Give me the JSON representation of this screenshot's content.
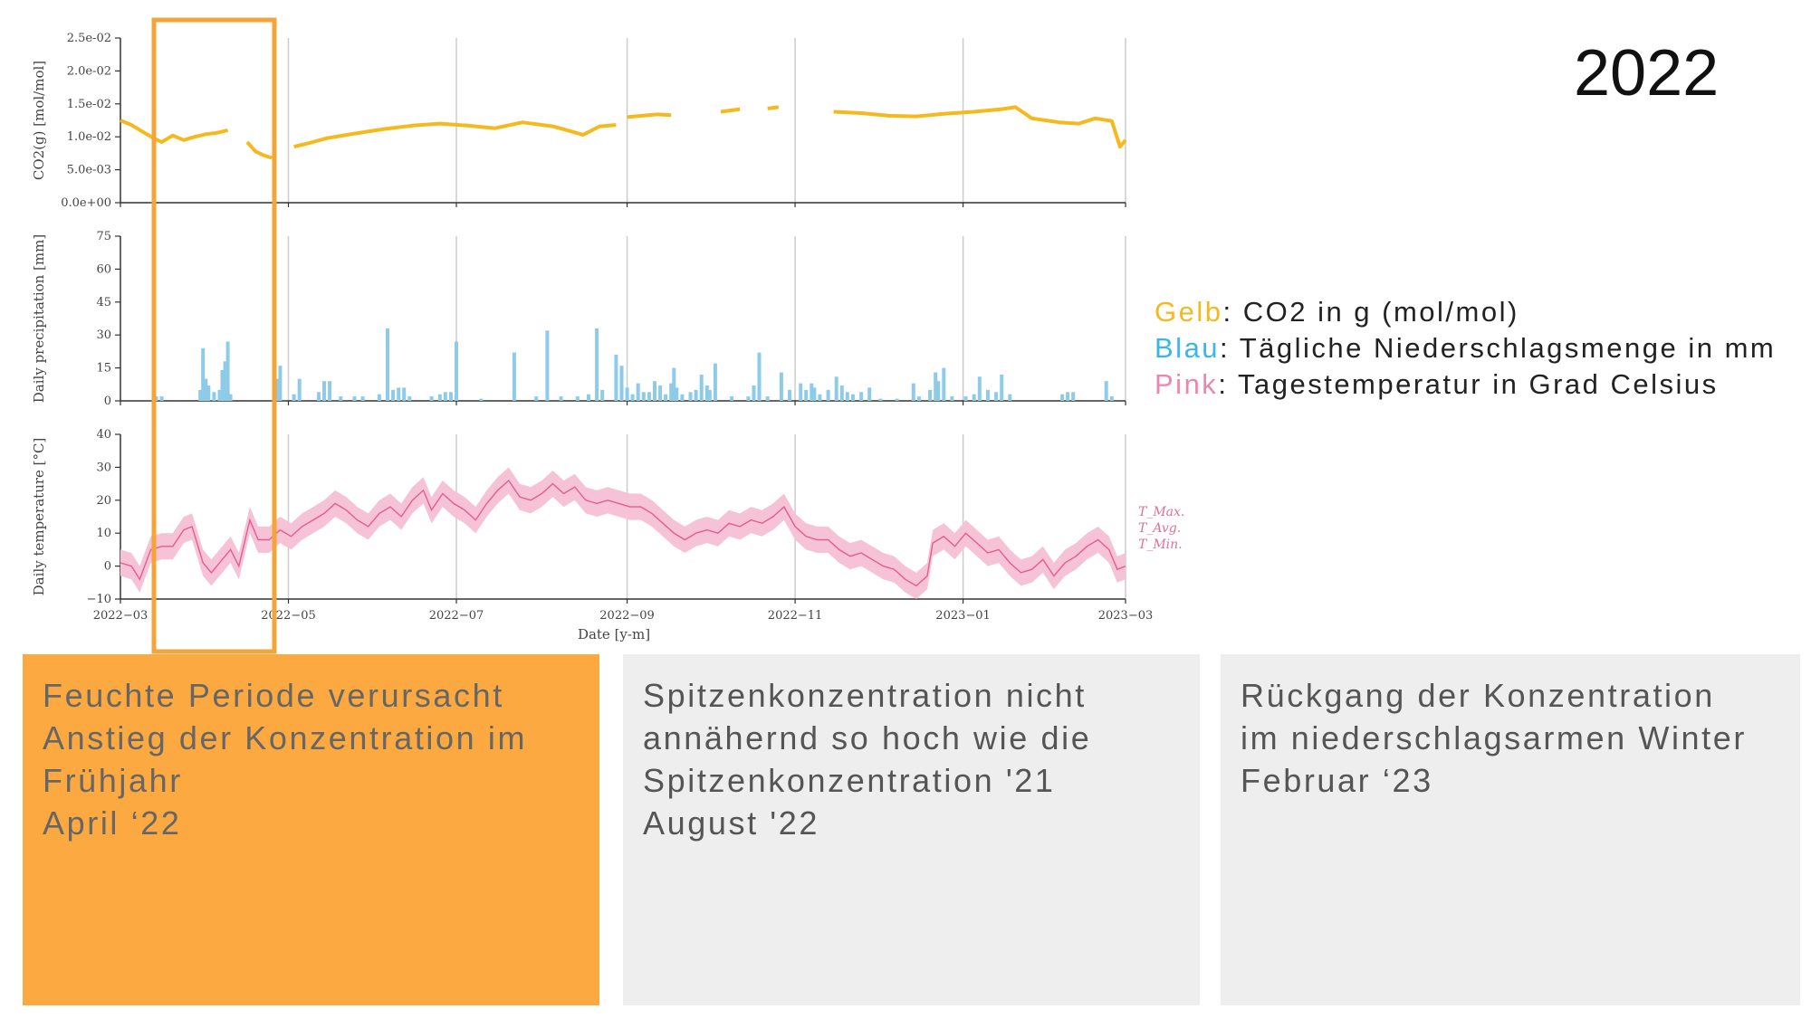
{
  "header": {
    "year": "2022"
  },
  "legend": {
    "rows": [
      {
        "key": "Gelb",
        "text": ": CO2 in g (mol/mol)",
        "color": "#f5b91e"
      },
      {
        "key": "Blau",
        "text": ": Tägliche Niederschlagsmenge in mm",
        "color": "#3ab7e8"
      },
      {
        "key": "Pink",
        "text": ": Tagestemperatur in Grad Celsius",
        "color": "#e888ae"
      }
    ]
  },
  "panels": [
    {
      "lines": [
        "Feuchte Periode verursacht",
        "Anstieg der Konzentration im",
        "Frühjahr",
        "April ‘22"
      ]
    },
    {
      "lines": [
        "Spitzenkonzentration nicht",
        "annähernd so hoch wie die",
        "Spitzenkonzentration '21",
        "August '22"
      ]
    },
    {
      "lines": [
        "Rückgang der Konzentration",
        "im niederschlagsarmen Winter",
        "Februar ‘23"
      ]
    }
  ],
  "chart_data": [
    {
      "type": "line",
      "ylabel": "CO2(g) [mol/mol]",
      "ylim": [
        0,
        0.025
      ],
      "yticks": [
        "0.0e+00",
        "5.0e-03",
        "1.0e-02",
        "1.5e-02",
        "2.0e-02",
        "2.5e-02"
      ],
      "color": "#f5b91e",
      "series": [
        {
          "points": [
            [
              "2022-03-01",
              0.0125
            ],
            [
              "2022-03-05",
              0.0118
            ],
            [
              "2022-03-09",
              0.0108
            ],
            [
              "2022-03-13",
              0.0098
            ],
            [
              "2022-03-16",
              0.0092
            ],
            [
              "2022-03-20",
              0.0102
            ],
            [
              "2022-03-24",
              0.0095
            ],
            [
              "2022-03-28",
              0.01
            ],
            [
              "2022-04-01",
              0.0104
            ],
            [
              "2022-04-05",
              0.0106
            ],
            [
              "2022-04-09",
              0.011
            ],
            null,
            [
              "2022-04-16",
              0.0092
            ],
            [
              "2022-04-19",
              0.0078
            ],
            [
              "2022-04-22",
              0.0072
            ],
            [
              "2022-04-25",
              0.0068
            ],
            null,
            [
              "2022-05-03",
              0.0085
            ],
            [
              "2022-05-08",
              0.009
            ],
            [
              "2022-05-15",
              0.0098
            ],
            [
              "2022-05-25",
              0.0105
            ],
            [
              "2022-06-05",
              0.0112
            ],
            [
              "2022-06-15",
              0.0117
            ],
            [
              "2022-06-25",
              0.012
            ],
            [
              "2022-07-05",
              0.0117
            ],
            [
              "2022-07-15",
              0.0113
            ],
            [
              "2022-07-25",
              0.0122
            ],
            [
              "2022-08-05",
              0.0116
            ],
            [
              "2022-08-12",
              0.0108
            ],
            [
              "2022-08-16",
              0.0103
            ],
            [
              "2022-08-22",
              0.0116
            ],
            [
              "2022-08-28",
              0.0118
            ],
            null,
            [
              "2022-09-01",
              0.013
            ],
            [
              "2022-09-12",
              0.0134
            ],
            [
              "2022-09-17",
              0.0133
            ],
            null,
            [
              "2022-10-05",
              0.0138
            ],
            [
              "2022-10-12",
              0.0142
            ],
            null,
            [
              "2022-10-22",
              0.0143
            ],
            [
              "2022-10-26",
              0.0145
            ],
            null,
            [
              "2022-11-15",
              0.0138
            ],
            [
              "2022-11-25",
              0.0136
            ],
            [
              "2022-12-05",
              0.0132
            ],
            [
              "2022-12-15",
              0.0131
            ],
            [
              "2022-12-25",
              0.0135
            ],
            [
              "2023-01-05",
              0.0138
            ],
            [
              "2023-01-15",
              0.0142
            ],
            [
              "2023-01-20",
              0.0145
            ],
            [
              "2023-01-26",
              0.0128
            ],
            [
              "2023-02-05",
              0.0122
            ],
            [
              "2023-02-12",
              0.012
            ],
            [
              "2023-02-18",
              0.0128
            ],
            [
              "2023-02-24",
              0.0124
            ],
            [
              "2023-02-27",
              0.0085
            ],
            [
              "2023-03-01",
              0.0095
            ]
          ]
        }
      ]
    },
    {
      "type": "bar",
      "ylabel": "Daily precipitation [mm]",
      "ylim": [
        0,
        75
      ],
      "yticks": [
        "0",
        "15",
        "30",
        "45",
        "60",
        "75"
      ],
      "color": "#8dcbe8",
      "bars": [
        [
          "2022-03-14",
          2
        ],
        [
          "2022-03-16",
          2
        ],
        [
          "2022-03-30",
          5
        ],
        [
          "2022-03-31",
          24
        ],
        [
          "2022-04-01",
          10
        ],
        [
          "2022-04-02",
          7
        ],
        [
          "2022-04-04",
          4
        ],
        [
          "2022-04-06",
          5
        ],
        [
          "2022-04-07",
          14
        ],
        [
          "2022-04-08",
          18
        ],
        [
          "2022-04-09",
          27
        ],
        [
          "2022-04-10",
          3
        ],
        [
          "2022-04-27",
          10
        ],
        [
          "2022-04-28",
          16
        ],
        [
          "2022-05-03",
          3
        ],
        [
          "2022-05-05",
          10
        ],
        [
          "2022-05-12",
          4
        ],
        [
          "2022-05-14",
          9
        ],
        [
          "2022-05-16",
          9
        ],
        [
          "2022-05-20",
          2
        ],
        [
          "2022-05-25",
          2
        ],
        [
          "2022-05-28",
          2
        ],
        [
          "2022-06-03",
          3
        ],
        [
          "2022-06-06",
          33
        ],
        [
          "2022-06-08",
          5
        ],
        [
          "2022-06-10",
          6
        ],
        [
          "2022-06-12",
          6
        ],
        [
          "2022-06-14",
          2
        ],
        [
          "2022-06-22",
          2
        ],
        [
          "2022-06-25",
          3
        ],
        [
          "2022-06-27",
          4
        ],
        [
          "2022-06-29",
          4
        ],
        [
          "2022-07-01",
          27
        ],
        [
          "2022-07-10",
          1
        ],
        [
          "2022-07-22",
          22
        ],
        [
          "2022-07-30",
          2
        ],
        [
          "2022-08-03",
          32
        ],
        [
          "2022-08-08",
          2
        ],
        [
          "2022-08-14",
          2
        ],
        [
          "2022-08-18",
          3
        ],
        [
          "2022-08-21",
          33
        ],
        [
          "2022-08-23",
          5
        ],
        [
          "2022-08-28",
          21
        ],
        [
          "2022-08-30",
          16
        ],
        [
          "2022-09-01",
          6
        ],
        [
          "2022-09-03",
          3
        ],
        [
          "2022-09-05",
          8
        ],
        [
          "2022-09-07",
          4
        ],
        [
          "2022-09-09",
          4
        ],
        [
          "2022-09-11",
          9
        ],
        [
          "2022-09-13",
          7
        ],
        [
          "2022-09-15",
          3
        ],
        [
          "2022-09-17",
          8
        ],
        [
          "2022-09-18",
          15
        ],
        [
          "2022-09-19",
          6
        ],
        [
          "2022-09-21",
          3
        ],
        [
          "2022-09-24",
          4
        ],
        [
          "2022-09-26",
          5
        ],
        [
          "2022-09-28",
          12
        ],
        [
          "2022-09-30",
          7
        ],
        [
          "2022-10-01",
          5
        ],
        [
          "2022-10-03",
          17
        ],
        [
          "2022-10-09",
          2
        ],
        [
          "2022-10-15",
          2
        ],
        [
          "2022-10-17",
          7
        ],
        [
          "2022-10-19",
          22
        ],
        [
          "2022-10-22",
          2
        ],
        [
          "2022-10-27",
          13
        ],
        [
          "2022-10-30",
          5
        ],
        [
          "2022-11-03",
          8
        ],
        [
          "2022-11-05",
          5
        ],
        [
          "2022-11-07",
          8
        ],
        [
          "2022-11-08",
          6
        ],
        [
          "2022-11-10",
          3
        ],
        [
          "2022-11-13",
          5
        ],
        [
          "2022-11-16",
          11
        ],
        [
          "2022-11-18",
          7
        ],
        [
          "2022-11-20",
          4
        ],
        [
          "2022-11-22",
          3
        ],
        [
          "2022-11-25",
          4
        ],
        [
          "2022-11-28",
          6
        ],
        [
          "2022-12-02",
          1
        ],
        [
          "2022-12-08",
          1
        ],
        [
          "2022-12-14",
          8
        ],
        [
          "2022-12-16",
          2
        ],
        [
          "2022-12-20",
          5
        ],
        [
          "2022-12-22",
          13
        ],
        [
          "2022-12-23",
          9
        ],
        [
          "2022-12-25",
          15
        ],
        [
          "2022-12-28",
          2
        ],
        [
          "2023-01-02",
          2
        ],
        [
          "2023-01-05",
          3
        ],
        [
          "2023-01-07",
          11
        ],
        [
          "2023-01-10",
          5
        ],
        [
          "2023-01-13",
          4
        ],
        [
          "2023-01-15",
          12
        ],
        [
          "2023-01-18",
          3
        ],
        [
          "2023-02-06",
          3
        ],
        [
          "2023-02-08",
          4
        ],
        [
          "2023-02-10",
          4
        ],
        [
          "2023-02-22",
          9
        ],
        [
          "2023-02-24",
          2
        ]
      ]
    },
    {
      "type": "area",
      "ylabel": "Daily temperature [°C]",
      "xlabel": "Date [y-m]",
      "ylim": [
        -10,
        40
      ],
      "yticks": [
        "−10",
        "0",
        "10",
        "20",
        "30",
        "40"
      ],
      "xticks": [
        "2022−03",
        "2022−05",
        "2022−07",
        "2022−09",
        "2022−11",
        "2023−01",
        "2023−03"
      ],
      "color": "#e45d8f",
      "band_color": "#f6c2d6",
      "series_labels": [
        "T_Max.",
        "T_Avg.",
        "T_Min."
      ],
      "avg": [
        [
          "2022-03-01",
          1
        ],
        [
          "2022-03-05",
          0
        ],
        [
          "2022-03-08",
          -4
        ],
        [
          "2022-03-12",
          5
        ],
        [
          "2022-03-16",
          6
        ],
        [
          "2022-03-20",
          6
        ],
        [
          "2022-03-24",
          11
        ],
        [
          "2022-03-27",
          12
        ],
        [
          "2022-03-31",
          1
        ],
        [
          "2022-04-03",
          -2
        ],
        [
          "2022-04-07",
          2
        ],
        [
          "2022-04-10",
          5
        ],
        [
          "2022-04-13",
          0
        ],
        [
          "2022-04-17",
          14
        ],
        [
          "2022-04-20",
          8
        ],
        [
          "2022-04-24",
          8
        ],
        [
          "2022-04-28",
          11
        ],
        [
          "2022-05-02",
          9
        ],
        [
          "2022-05-06",
          12
        ],
        [
          "2022-05-10",
          14
        ],
        [
          "2022-05-14",
          16
        ],
        [
          "2022-05-18",
          19
        ],
        [
          "2022-05-22",
          17
        ],
        [
          "2022-05-26",
          14
        ],
        [
          "2022-05-30",
          12
        ],
        [
          "2022-06-03",
          16
        ],
        [
          "2022-06-07",
          18
        ],
        [
          "2022-06-11",
          15
        ],
        [
          "2022-06-15",
          20
        ],
        [
          "2022-06-19",
          23
        ],
        [
          "2022-06-22",
          17
        ],
        [
          "2022-06-26",
          22
        ],
        [
          "2022-06-30",
          19
        ],
        [
          "2022-07-04",
          17
        ],
        [
          "2022-07-08",
          14
        ],
        [
          "2022-07-12",
          19
        ],
        [
          "2022-07-16",
          23
        ],
        [
          "2022-07-20",
          26
        ],
        [
          "2022-07-24",
          21
        ],
        [
          "2022-07-28",
          20
        ],
        [
          "2022-08-01",
          22
        ],
        [
          "2022-08-05",
          25
        ],
        [
          "2022-08-09",
          22
        ],
        [
          "2022-08-13",
          24
        ],
        [
          "2022-08-17",
          20
        ],
        [
          "2022-08-21",
          19
        ],
        [
          "2022-08-25",
          20
        ],
        [
          "2022-08-29",
          19
        ],
        [
          "2022-09-02",
          18
        ],
        [
          "2022-09-06",
          18
        ],
        [
          "2022-09-10",
          16
        ],
        [
          "2022-09-14",
          13
        ],
        [
          "2022-09-18",
          10
        ],
        [
          "2022-09-22",
          8
        ],
        [
          "2022-09-26",
          10
        ],
        [
          "2022-09-30",
          11
        ],
        [
          "2022-10-04",
          10
        ],
        [
          "2022-10-08",
          13
        ],
        [
          "2022-10-12",
          12
        ],
        [
          "2022-10-16",
          14
        ],
        [
          "2022-10-20",
          13
        ],
        [
          "2022-10-24",
          15
        ],
        [
          "2022-10-28",
          18
        ],
        [
          "2022-11-01",
          12
        ],
        [
          "2022-11-05",
          9
        ],
        [
          "2022-11-09",
          8
        ],
        [
          "2022-11-13",
          8
        ],
        [
          "2022-11-17",
          5
        ],
        [
          "2022-11-21",
          3
        ],
        [
          "2022-11-25",
          4
        ],
        [
          "2022-11-29",
          2
        ],
        [
          "2022-12-03",
          0
        ],
        [
          "2022-12-07",
          -1
        ],
        [
          "2022-12-11",
          -4
        ],
        [
          "2022-12-15",
          -6
        ],
        [
          "2022-12-19",
          -3
        ],
        [
          "2022-12-21",
          7
        ],
        [
          "2022-12-25",
          9
        ],
        [
          "2022-12-29",
          6
        ],
        [
          "2023-01-02",
          10
        ],
        [
          "2023-01-06",
          7
        ],
        [
          "2023-01-10",
          4
        ],
        [
          "2023-01-14",
          5
        ],
        [
          "2023-01-18",
          1
        ],
        [
          "2023-01-22",
          -2
        ],
        [
          "2023-01-26",
          -1
        ],
        [
          "2023-01-30",
          2
        ],
        [
          "2023-02-03",
          -3
        ],
        [
          "2023-02-07",
          1
        ],
        [
          "2023-02-11",
          3
        ],
        [
          "2023-02-15",
          6
        ],
        [
          "2023-02-19",
          8
        ],
        [
          "2023-02-23",
          5
        ],
        [
          "2023-02-26",
          -1
        ],
        [
          "2023-03-01",
          0
        ]
      ],
      "band_halfwidth": 4
    }
  ]
}
